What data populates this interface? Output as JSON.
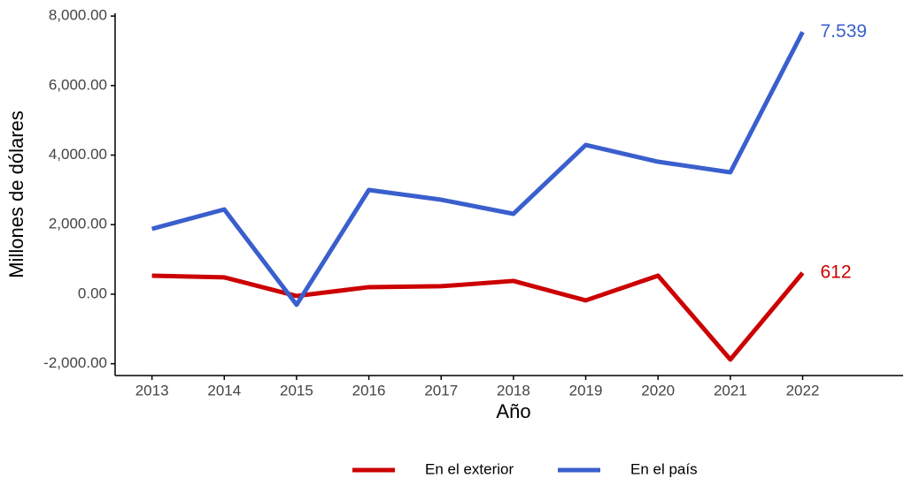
{
  "chart_data": {
    "type": "line",
    "x_label": "Año",
    "y_label": "Millones de dólares",
    "x": [
      2013,
      2014,
      2015,
      2016,
      2017,
      2018,
      2019,
      2020,
      2021,
      2022
    ],
    "series": [
      {
        "name": "En el exterior",
        "color": "#cc0000",
        "values": [
          533,
          483,
          -51,
          203,
          229,
          381,
          -178,
          533,
          -1879,
          612
        ],
        "value_labels": [
          null,
          null,
          null,
          null,
          null,
          null,
          null,
          null,
          null,
          "612"
        ]
      },
      {
        "name": "En el país",
        "color": "#3a5fcd",
        "values": [
          1879,
          2438,
          -305,
          2997,
          2717,
          2311,
          4292,
          3810,
          3505,
          7539
        ],
        "value_labels": [
          null,
          null,
          null,
          null,
          null,
          null,
          null,
          null,
          null,
          "7.539"
        ]
      }
    ],
    "xlim": [
      2012.49,
      2023.39
    ],
    "xticks": [
      2013,
      2014,
      2015,
      2016,
      2017,
      2018,
      2019,
      2020,
      2021,
      2022
    ],
    "ylim": [
      -2340,
      8080
    ],
    "yticks": [
      {
        "value": -2000,
        "label": "-2,000.00"
      },
      {
        "value": 0,
        "label": "0.00"
      },
      {
        "value": 2000,
        "label": "2,000.00"
      },
      {
        "value": 4000,
        "label": "4,000.00"
      },
      {
        "value": 6000,
        "label": "6,000.00"
      },
      {
        "value": 8000,
        "label": "8,000.00"
      }
    ],
    "grid": false,
    "legend": "bottom"
  }
}
